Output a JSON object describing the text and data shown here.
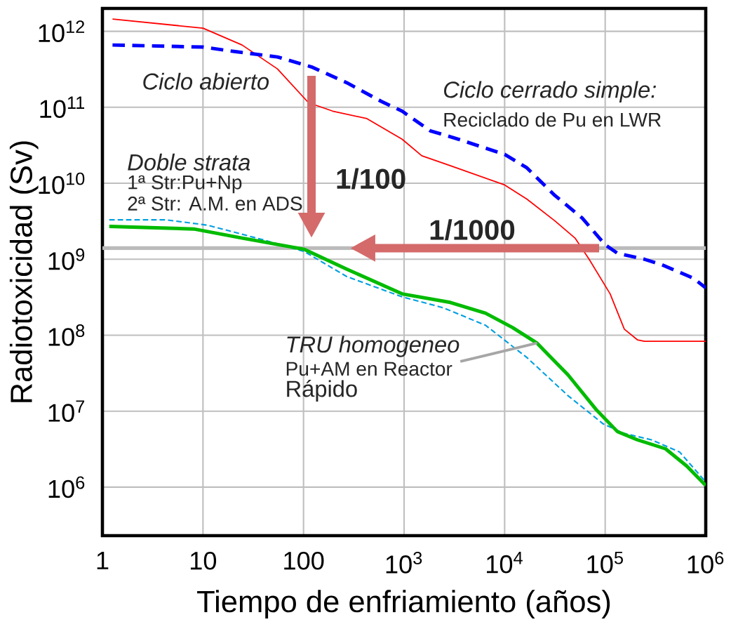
{
  "chart_data": {
    "type": "line",
    "xlabel": "Tiempo de enfriamiento (años)",
    "ylabel": "Radiotoxicidad (Sv)",
    "log": "xy",
    "grid": true,
    "legend": false,
    "xlim": [
      1,
      1000000
    ],
    "ylim": [
      230000,
      2000000000000
    ],
    "xticks": [
      1,
      10,
      100,
      {
        "value": 1000,
        "label": "10$^{3}$"
      },
      {
        "value": 10000,
        "label": "10$^{4}$"
      },
      {
        "value": 100000,
        "label": "10$^{5}$"
      },
      {
        "value": 1000000,
        "label": "10$^{6}$"
      }
    ],
    "yticks": [
      {
        "value": 1000000,
        "label": "10$^{6}$"
      },
      {
        "value": 10000000,
        "label": "10$^{7}$"
      },
      {
        "value": 100000000,
        "label": "10$^{8}$"
      },
      {
        "value": 1000000000,
        "label": "10$^{9}$"
      },
      {
        "value": 10000000000,
        "label": "10$^{10}$"
      },
      {
        "value": 100000000000,
        "label": "10$^{11}$"
      },
      {
        "value": 1000000000000,
        "label": "10$^{12}$"
      }
    ],
    "series": [
      {
        "name": "Ciclo abierto",
        "color": "#ff0000",
        "line_style": "solid",
        "x": [
          1.26,
          10,
          24.5,
          55,
          112,
          195,
          427,
          955,
          1500,
          2900,
          10000,
          16600,
          31600,
          50100,
          69200,
          112000,
          155000,
          209000,
          245000,
          1000000
        ],
        "values": [
          1450000000000.0,
          1100000000000.0,
          660000000000.0,
          320000000000.0,
          115000000000.0,
          89000000000.0,
          71000000000.0,
          38000000000.0,
          23000000000.0,
          17000000000.0,
          9500000000.0,
          6200000000.0,
          3200000000.0,
          1900000000.0,
          1000000000.0,
          350000000.0,
          120000000.0,
          87000000.0,
          83000000.0,
          83000000.0
        ]
      },
      {
        "name": "Ciclo cerrado simple:",
        "color": "#0000ff",
        "line_style": "dashed",
        "x": [
          1.26,
          10,
          21,
          55,
          120,
          270,
          590,
          955,
          1820,
          3470,
          10000,
          16600,
          31600,
          58900,
          100000,
          132000,
          245000,
          363000,
          759000,
          1000000
        ],
        "values": [
          660000000000.0,
          620000000000.0,
          540000000000.0,
          460000000000.0,
          340000000000.0,
          210000000000.0,
          120000000000.0,
          89000000000.0,
          49000000000.0,
          38000000000.0,
          24000000000.0,
          16000000000.0,
          6900000000.0,
          3500000000.0,
          1550000000.0,
          1200000000.0,
          1000000000.0,
          850000000.0,
          560000000.0,
          420000000.0
        ]
      },
      {
        "name": "Doble strata",
        "color": "#00a0e0",
        "line_style": "dashed",
        "x": [
          1.17,
          4.3,
          11.2,
          39.8,
          102,
          270,
          955,
          2450,
          6460,
          16600,
          42700,
          95500,
          155000,
          288000,
          550000,
          1000000
        ],
        "values": [
          3300000000.0,
          3300000000.0,
          2800000000.0,
          1800000000.0,
          1260000000.0,
          590000000.0,
          320000000.0,
          230000000.0,
          135000000.0,
          51000000.0,
          16000000.0,
          6800000.0,
          5100000.0,
          4200000.0,
          2900000.0,
          1170000.0
        ]
      },
      {
        "color": "#00bb00",
        "line_style": "solid",
        "x": [
          1.17,
          8.1,
          24.5,
          102,
          270,
          955,
          2880,
          6460,
          12000,
          20900,
          42700,
          81300,
          132000,
          209000,
          398000,
          646000,
          1000000
        ],
        "values": [
          2700000000.0,
          2500000000.0,
          1900000000.0,
          1350000000.0,
          740000000.0,
          350000000.0,
          270000000.0,
          195000000.0,
          126000000.0,
          79000000.0,
          30000000.0,
          10500000.0,
          5400000.0,
          4200000.0,
          3200000.0,
          1900000.0,
          1050000.0
        ]
      }
    ],
    "ref_lines": [
      {
        "axis": "y",
        "value": 1400000000,
        "color": "#bbbbbb"
      }
    ],
    "annotations": [
      "Reciclado de Pu en LWR",
      "1ª Str:Pu+Np",
      "2ª Str: A.M. en ADS",
      "TRU homogeneo",
      {
        "text": "Pu+AM en Reactor",
        "x": 21000,
        "y": 79000000
      },
      "Rápido",
      "1/100",
      "1/1000"
    ]
  }
}
